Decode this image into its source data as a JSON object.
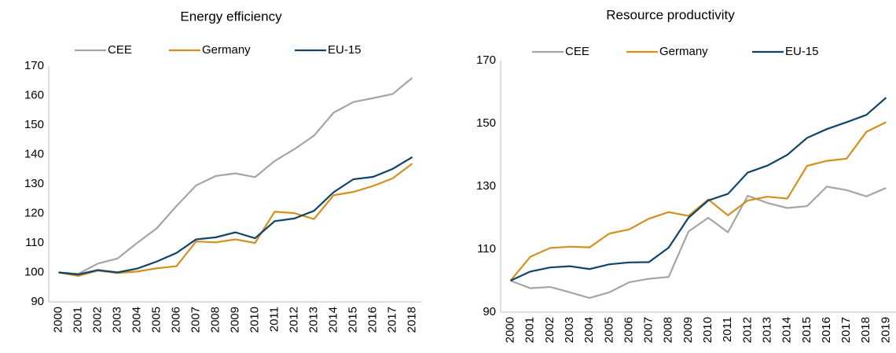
{
  "chart_data": [
    {
      "type": "line",
      "title": "Energy efficiency",
      "categories": [
        "2000",
        "2001",
        "2002",
        "2003",
        "2004",
        "2005",
        "2006",
        "2007",
        "2008",
        "2009",
        "2010",
        "2011",
        "2012",
        "2013",
        "2014",
        "2015",
        "2016",
        "2017",
        "2018"
      ],
      "series": [
        {
          "name": "CEE",
          "color": "#a5a5a5",
          "values": [
            100,
            99.5,
            103,
            104.7,
            110,
            115,
            122.5,
            129.5,
            132.7,
            133.6,
            132.3,
            137.8,
            141.8,
            146.4,
            154.2,
            157.8,
            159.1,
            160.5,
            166
          ]
        },
        {
          "name": "Germany",
          "color": "#d4901e",
          "values": [
            100,
            98.8,
            100.6,
            99.8,
            100.3,
            101.4,
            102.1,
            110.5,
            110.2,
            111.2,
            110,
            120.6,
            120.1,
            118.1,
            126.2,
            127.3,
            129.3,
            131.9,
            136.9
          ]
        },
        {
          "name": "EU-15",
          "color": "#0e4467",
          "values": [
            100,
            99.3,
            100.8,
            100,
            101.3,
            103.7,
            106.6,
            111.2,
            111.9,
            113.6,
            111.6,
            117.4,
            118.3,
            120.9,
            127.2,
            131.6,
            132.4,
            135.1,
            139.1
          ]
        }
      ],
      "ylim": [
        90,
        170
      ],
      "yticks": [
        90,
        100,
        110,
        120,
        130,
        140,
        150,
        160,
        170
      ],
      "legend": "top",
      "grid": false
    },
    {
      "type": "line",
      "title": "Resource productivity",
      "categories": [
        "2000",
        "2001",
        "2002",
        "2003",
        "2004",
        "2005",
        "2006",
        "2007",
        "2008",
        "2009",
        "2010",
        "2011",
        "2012",
        "2013",
        "2014",
        "2015",
        "2016",
        "2017",
        "2018",
        "2019"
      ],
      "series": [
        {
          "name": "CEE",
          "color": "#a5a5a5",
          "values": [
            100,
            97.6,
            98,
            96.3,
            94.5,
            96.3,
            99.5,
            100.6,
            101.2,
            115.6,
            120,
            115.4,
            127,
            124.7,
            123.1,
            123.7,
            129.9,
            128.8,
            126.8,
            129.5
          ]
        },
        {
          "name": "Germany",
          "color": "#d4901e",
          "values": [
            100,
            107.6,
            110.4,
            110.8,
            110.6,
            115,
            116.3,
            119.7,
            121.8,
            120.6,
            125.8,
            120.8,
            125.5,
            126.7,
            126.1,
            136.5,
            138.1,
            138.8,
            147.3,
            150.4
          ]
        },
        {
          "name": "EU-15",
          "color": "#0e4467",
          "values": [
            100,
            102.9,
            104.2,
            104.6,
            103.7,
            105.2,
            105.8,
            105.9,
            110.5,
            120,
            125.5,
            127.6,
            134.4,
            136.6,
            140,
            145.4,
            148.2,
            150.4,
            152.7,
            158.2
          ]
        }
      ],
      "ylim": [
        90,
        170
      ],
      "yticks": [
        90,
        110,
        130,
        150,
        170
      ],
      "legend": "top",
      "grid": false
    }
  ]
}
